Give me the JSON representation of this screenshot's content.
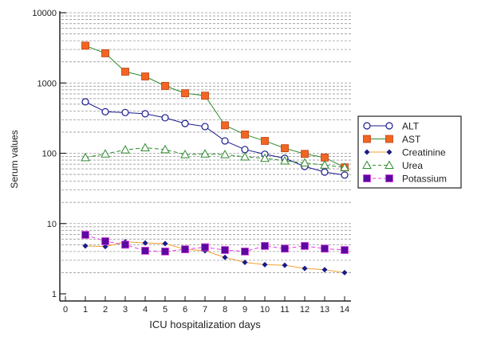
{
  "chart_data": {
    "type": "line",
    "xlabel": "ICU hospitalization days",
    "ylabel": "Serum values",
    "y_scale": "log",
    "ylim": [
      1,
      10000
    ],
    "xlim": [
      0,
      14
    ],
    "x_ticks": [
      "0",
      "1",
      "2",
      "3",
      "4",
      "5",
      "6",
      "7",
      "8",
      "9",
      "10",
      "11",
      "12",
      "13",
      "14"
    ],
    "y_ticks": [
      "1",
      "10",
      "100",
      "1000",
      "10000"
    ],
    "grid": "horizontal dotted",
    "legend_position": "right",
    "x": [
      1,
      2,
      3,
      4,
      5,
      6,
      7,
      8,
      9,
      10,
      11,
      12,
      13,
      14
    ],
    "series": [
      {
        "name": "ALT",
        "color": "#1a1a8c",
        "marker": "open-circle",
        "line": "solid",
        "values": [
          540,
          390,
          380,
          365,
          320,
          265,
          240,
          150,
          113,
          97,
          85,
          65,
          54,
          49
        ]
      },
      {
        "name": "AST",
        "color": "#2e8b2e",
        "marker": "filled-square",
        "marker_color": "#f26522",
        "line": "solid",
        "values": [
          3400,
          2650,
          1450,
          1240,
          910,
          715,
          660,
          250,
          185,
          150,
          118,
          98,
          87,
          63
        ]
      },
      {
        "name": "Creatinine",
        "color": "#f0a030",
        "marker": "filled-diamond",
        "marker_color": "#1a1a8c",
        "line": "solid",
        "values": [
          4.8,
          4.7,
          5.5,
          5.3,
          5.2,
          4.3,
          4.1,
          3.3,
          2.8,
          2.6,
          2.55,
          2.3,
          2.2,
          2.0
        ]
      },
      {
        "name": "Urea",
        "color": "#2e8b2e",
        "marker": "open-triangle",
        "line": "dashed",
        "values": [
          87,
          98,
          112,
          120,
          113,
          96,
          98,
          96,
          89,
          85,
          78,
          73,
          68,
          63
        ]
      },
      {
        "name": "Potassium",
        "color": "#e040e0",
        "marker": "filled-square",
        "marker_color": "#5a0aa0",
        "line": "dashed",
        "values": [
          6.9,
          5.6,
          5.0,
          4.1,
          4.0,
          4.3,
          4.6,
          4.2,
          4.0,
          4.8,
          4.4,
          4.8,
          4.4,
          4.2
        ]
      }
    ]
  }
}
